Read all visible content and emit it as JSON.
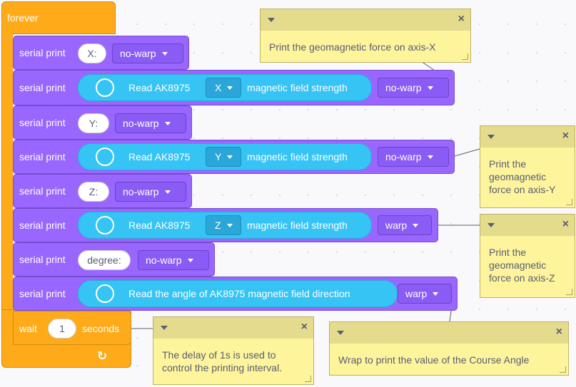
{
  "loop": {
    "label": "forever"
  },
  "blocks": [
    {
      "cmd": "serial print",
      "text": "X:",
      "warp": "no-warp"
    },
    {
      "cmd": "serial print",
      "read_prefix": "Read AK8975",
      "axis": "X",
      "read_suffix": "magnetic field strength",
      "warp": "no-warp"
    },
    {
      "cmd": "serial print",
      "text": "Y:",
      "warp": "no-warp"
    },
    {
      "cmd": "serial print",
      "read_prefix": "Read AK8975",
      "axis": "Y",
      "read_suffix": "magnetic field strength",
      "warp": "no-warp"
    },
    {
      "cmd": "serial print",
      "text": "Z:",
      "warp": "no-warp"
    },
    {
      "cmd": "serial print",
      "read_prefix": "Read AK8975",
      "axis": "Z",
      "read_suffix": "magnetic field strength",
      "warp": "warp"
    },
    {
      "cmd": "serial print",
      "text": "degree:",
      "warp": "no-warp"
    },
    {
      "cmd": "serial print",
      "read_full": "Read the angle of AK8975 magnetic field direction",
      "warp": "warp"
    }
  ],
  "wait": {
    "label": "wait",
    "value": "1",
    "unit": "seconds"
  },
  "comments": {
    "c1": "Print the geomagnetic force on axis-X",
    "c2": [
      "Print the",
      "geomagnetic",
      "force on axis-Y"
    ],
    "c3": [
      "Print the",
      "geomagnetic",
      "force on axis-Z"
    ],
    "c4": [
      "The delay of 1s is used to",
      "control the printing interval."
    ],
    "c5": "Wrap to print the value of the Course Angle"
  },
  "icons": {
    "comment_close": "×",
    "loop_arrow": "↻"
  }
}
